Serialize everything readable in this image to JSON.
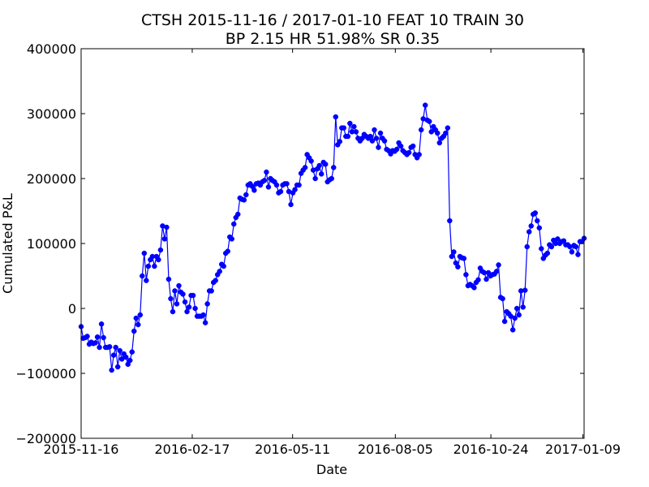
{
  "chart_data": {
    "type": "line",
    "title": "CTSH 2015-11-16 / 2017-01-10 FEAT 10 TRAIN 30",
    "subtitle": "BP 2.15 HR 51.98%  SR 0.35",
    "xlabel": "Date",
    "ylabel": "Cumulated P&L",
    "x_start": "2015-11-16",
    "x_end": "2017-01-10",
    "x_ticks": [
      "2015-11-16",
      "2016-02-17",
      "2016-05-11",
      "2016-08-05",
      "2016-10-24",
      "2017-01-09"
    ],
    "ylim": [
      -200000,
      400000
    ],
    "y_ticks": [
      -200000,
      -100000,
      0,
      100000,
      200000,
      300000,
      400000
    ],
    "y_tick_labels": [
      "−200000",
      "−100000",
      "0",
      "100000",
      "200000",
      "300000",
      "400000"
    ],
    "grid": false,
    "color": "#0000ff",
    "marker": "circle",
    "series": [
      {
        "values": [
          -28000,
          -46000,
          -45000,
          -43000,
          -55000,
          -52000,
          -54000,
          -53000,
          -44000,
          -60000,
          -24000,
          -45000,
          -60000,
          -60000,
          -59000,
          -95000,
          -72000,
          -60000,
          -90000,
          -65000,
          -78000,
          -70000,
          -75000,
          -86000,
          -80000,
          -67000,
          -35000,
          -15000,
          -25000,
          -10000,
          50000,
          85000,
          43000,
          65000,
          75000,
          80000,
          65000,
          80000,
          75000,
          90000,
          127000,
          107000,
          125000,
          45000,
          15000,
          -5000,
          27000,
          7000,
          35000,
          25000,
          22000,
          10000,
          -5000,
          2000,
          20000,
          20000,
          0,
          -12000,
          -12000,
          -12000,
          -10000,
          -22000,
          7000,
          27000,
          27000,
          40000,
          43000,
          52000,
          57000,
          68000,
          65000,
          85000,
          88000,
          110000,
          107000,
          130000,
          140000,
          145000,
          170000,
          168000,
          167000,
          175000,
          190000,
          192000,
          188000,
          182000,
          192000,
          193000,
          190000,
          195000,
          197000,
          210000,
          187000,
          200000,
          197000,
          195000,
          190000,
          178000,
          180000,
          190000,
          192000,
          192000,
          180000,
          160000,
          178000,
          183000,
          190000,
          190000,
          208000,
          213000,
          217000,
          237000,
          232000,
          227000,
          213000,
          200000,
          215000,
          220000,
          207000,
          225000,
          222000,
          195000,
          198000,
          200000,
          217000,
          295000,
          252000,
          257000,
          278000,
          278000,
          265000,
          265000,
          285000,
          272000,
          280000,
          272000,
          262000,
          258000,
          262000,
          268000,
          265000,
          262000,
          265000,
          258000,
          275000,
          262000,
          248000,
          270000,
          262000,
          258000,
          245000,
          243000,
          238000,
          243000,
          242000,
          245000,
          255000,
          250000,
          243000,
          240000,
          237000,
          240000,
          248000,
          250000,
          237000,
          232000,
          237000,
          275000,
          292000,
          313000,
          290000,
          288000,
          272000,
          280000,
          275000,
          270000,
          255000,
          262000,
          265000,
          270000,
          278000,
          135000,
          80000,
          87000,
          70000,
          64000,
          80000,
          78000,
          77000,
          52000,
          35000,
          37000,
          35000,
          32000,
          40000,
          44000,
          62000,
          57000,
          55000,
          45000,
          55000,
          50000,
          52000,
          53000,
          57000,
          67000,
          17000,
          15000,
          -20000,
          -5000,
          -8000,
          -12000,
          -33000,
          -15000,
          0,
          -10000,
          27000,
          2000,
          28000,
          95000,
          118000,
          127000,
          145000,
          147000,
          135000,
          124000,
          92000,
          77000,
          82000,
          85000,
          98000,
          95000,
          105000,
          100000,
          107000,
          100000,
          103000,
          104000,
          98000,
          98000,
          95000,
          87000,
          97000,
          95000,
          83000,
          103000,
          103000,
          108000
        ]
      }
    ]
  }
}
